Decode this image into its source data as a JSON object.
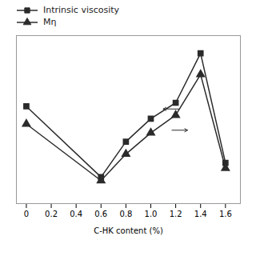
{
  "chart_data": {
    "type": "line",
    "x": [
      0.0,
      0.6,
      0.8,
      1.0,
      1.2,
      1.4,
      1.6
    ],
    "series": [
      {
        "name": "Intrinsic viscosity",
        "color": "#2b2b2b",
        "marker": "square",
        "values": [
          0.7,
          0.3,
          0.5,
          0.63,
          0.72,
          1.0,
          0.38
        ]
      },
      {
        "name": "Mη",
        "color": "#2b2b2b",
        "marker": "triangle",
        "values": [
          0.6,
          0.28,
          0.43,
          0.55,
          0.65,
          0.88,
          0.35
        ]
      }
    ],
    "xlabel": "C-HK content (%)",
    "xlim": [
      -0.08,
      1.72
    ],
    "ylim": [
      0.15,
      1.1
    ],
    "xticks": [
      0,
      0.2,
      0.4,
      0.6,
      0.8,
      {
        "value": 1.0,
        "label": "1.0"
      },
      1.2,
      1.4,
      1.6
    ],
    "tick_labels": "x",
    "grid": false,
    "legend": "upper left",
    "annotations": [
      {
        "from": [
          1.225,
          0.685
        ],
        "to": [
          1.1,
          0.685
        ],
        "color": "#2b2b2b"
      },
      {
        "from": [
          1.17,
          0.565
        ],
        "to": [
          1.295,
          0.565
        ],
        "color": "#2b2b2b"
      }
    ]
  }
}
